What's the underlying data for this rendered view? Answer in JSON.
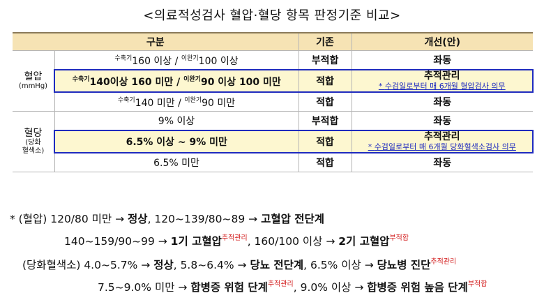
{
  "title": "<의료적성검사 혈압·혈당 항목 판정기준 비교>",
  "table": {
    "headers": [
      "구분",
      "기존",
      "개선(안)"
    ],
    "bp": {
      "label": "혈압",
      "unit": "(mmHg)",
      "rows": [
        {
          "sys_tag": "수축기",
          "sys": "160 이상 / ",
          "dia_tag": "이완기",
          "dia": "100 이상",
          "old": "부적합",
          "new": "좌동"
        },
        {
          "sys_tag": "수축기",
          "sys": "140이상 160 미만 / ",
          "dia_tag": "이완기",
          "dia": "90 이상 100 미만",
          "old": "적합",
          "new": "추적관리",
          "note_star": "* ",
          "note": "수검일로부터 매 6개월 혈압검사 의무"
        },
        {
          "sys_tag": "수축기",
          "sys": "140 미만 / ",
          "dia_tag": "이완기",
          "dia": "90 미만",
          "old": "적합",
          "new": "좌동"
        }
      ]
    },
    "glu": {
      "label": "혈당",
      "label2": "(당화",
      "label3": "혈색소)",
      "rows": [
        {
          "range": "9% 이상",
          "old": "부적합",
          "new": "좌동"
        },
        {
          "range": "6.5% 이상 ~ 9% 미만",
          "old": "적합",
          "new": "추적관리",
          "note_star": "* ",
          "note": "수검일로부터 매 6개월 당화혈색소검사 의무"
        },
        {
          "range": "6.5% 미만",
          "old": "적합",
          "new": "좌동"
        }
      ]
    }
  },
  "footnotes": {
    "l1": {
      "a": "* (혈압) 120/80 미만 → ",
      "b": "정상",
      "c": ", 120~139/80~89 → ",
      "d": "고혈압 전단계"
    },
    "l2": {
      "a": "140~159/90~99 → ",
      "b": "1기 고혈압",
      "sup1": "추적관리",
      "c": ", 160/100 이상 → ",
      "d": "2기 고혈압",
      "sup2": "부적합"
    },
    "l3": {
      "a": "(당화혈색소) 4.0~5.7% → ",
      "b": "정상",
      "c": ", 5.8~6.4% → ",
      "d": "당뇨 전단계",
      "e": ", 6.5% 이상 → ",
      "f": "당뇨병 진단",
      "sup1": "추적관리"
    },
    "l4": {
      "a": "7.5~9.0% 미만 → ",
      "b": "합병증 위험 단계",
      "sup1": "추적관리",
      "c": ", 9.0% 이상 → ",
      "d": "합병증 위험 높음 단계",
      "sup2": "부적합"
    }
  },
  "colors": {
    "header_bg": "#f6e3b4",
    "highlight_bg": "#fdf7d0",
    "highlight_border": "#1f2bbf",
    "warn_red": "#d21a1a"
  }
}
